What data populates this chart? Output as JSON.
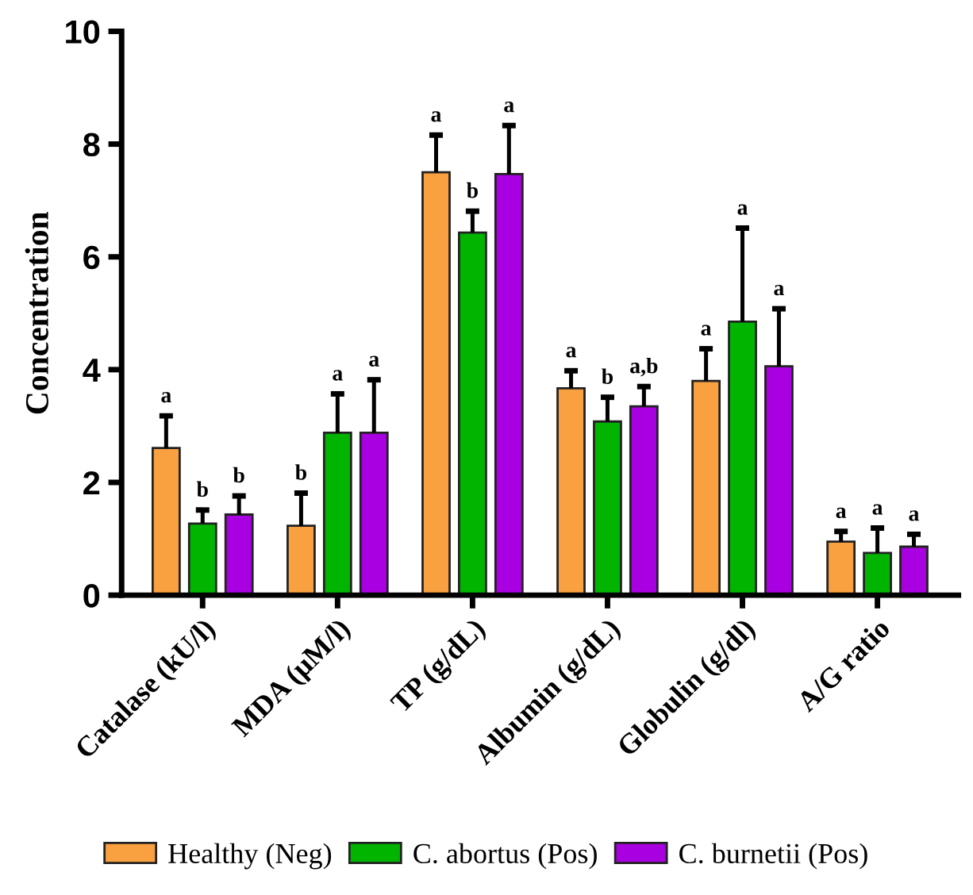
{
  "chart_data": {
    "type": "bar",
    "ylabel": "Concentration",
    "categories": [
      "Catalase (kU/l)",
      "MDA (μM/l)",
      "TP (g/dL)",
      "Albumin (g/dL)",
      "Globulin (g/dl)",
      "A/G ratio"
    ],
    "series": [
      {
        "name": "Healthy (Neg)",
        "color": "#f9a040",
        "values": [
          2.61,
          1.23,
          7.5,
          3.67,
          3.8,
          0.95
        ],
        "errors": [
          [
            2.61,
            3.18
          ],
          [
            1.23,
            1.81
          ],
          [
            7.5,
            8.16
          ],
          [
            3.67,
            3.98
          ],
          [
            3.8,
            4.37
          ],
          [
            0.95,
            1.13
          ]
        ]
      },
      {
        "name": "C. abortus (Pos)",
        "color": "#00b400",
        "values": [
          1.27,
          2.88,
          6.43,
          3.08,
          4.85,
          0.75
        ],
        "errors": [
          [
            1.27,
            1.51
          ],
          [
            2.88,
            3.57
          ],
          [
            6.43,
            6.81
          ],
          [
            3.08,
            3.51
          ],
          [
            4.85,
            6.51
          ],
          [
            0.75,
            1.19
          ]
        ]
      },
      {
        "name": "C. burnetii (Pos)",
        "color": "#a800e0",
        "values": [
          1.43,
          2.88,
          7.47,
          3.35,
          4.06,
          0.86
        ],
        "errors": [
          [
            1.43,
            1.76
          ],
          [
            2.88,
            3.82
          ],
          [
            7.47,
            8.33
          ],
          [
            3.35,
            3.7
          ],
          [
            4.06,
            5.08
          ],
          [
            0.86,
            1.08
          ]
        ]
      }
    ],
    "ylim": [
      0,
      10
    ],
    "yticks": [
      0,
      2,
      4,
      6,
      8,
      10
    ],
    "grid": false,
    "legend": "bottom",
    "annotations": [
      "a",
      "b",
      "b",
      "b",
      "a",
      "a",
      "a",
      "b",
      "a",
      "a",
      "b",
      "a,b",
      "a",
      "a",
      "a",
      "a",
      "a",
      "a"
    ]
  }
}
